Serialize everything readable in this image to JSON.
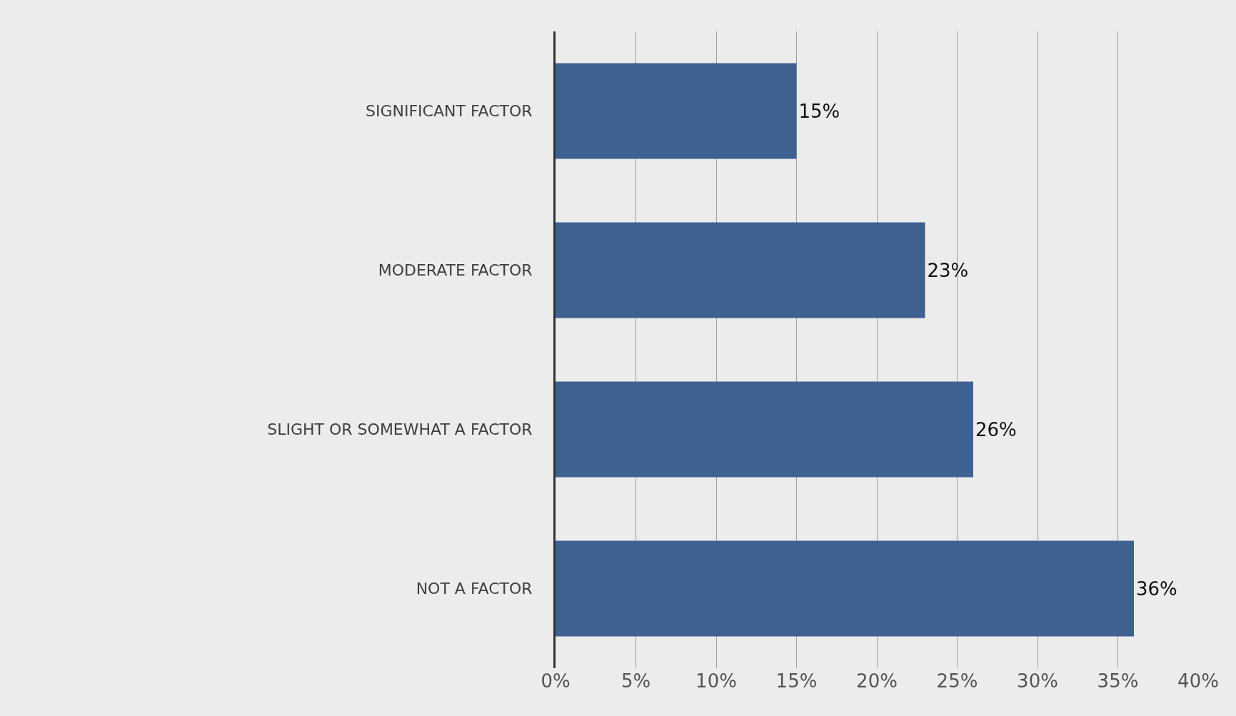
{
  "chart_data": {
    "type": "bar",
    "orientation": "horizontal",
    "categories": [
      "SIGNIFICANT FACTOR",
      "MODERATE FACTOR",
      "SLIGHT OR SOMEWHAT A FACTOR",
      "NOT A FACTOR"
    ],
    "values": [
      15,
      23,
      26,
      36
    ],
    "value_labels": [
      "15%",
      "23%",
      "26%",
      "36%"
    ],
    "color": "#3f6190",
    "xlim": [
      0,
      40
    ],
    "xticks": [
      {
        "value": 0,
        "label": "0%"
      },
      {
        "value": 5,
        "label": "5%"
      },
      {
        "value": 10,
        "label": "10%"
      },
      {
        "value": 15,
        "label": "15%"
      },
      {
        "value": 20,
        "label": "20%"
      },
      {
        "value": 25,
        "label": "25%"
      },
      {
        "value": 30,
        "label": "30%"
      },
      {
        "value": 35,
        "label": "35%"
      },
      {
        "value": 40,
        "label": "40%"
      }
    ],
    "grid": "x",
    "legend": false
  }
}
